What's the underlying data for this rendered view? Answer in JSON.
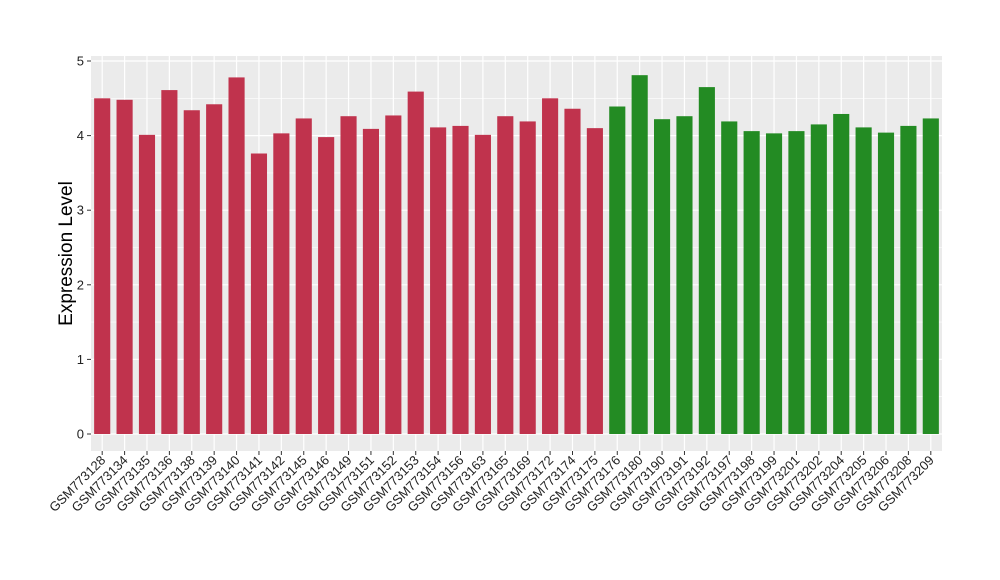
{
  "chart_data": {
    "type": "bar",
    "title": "",
    "xlabel": "",
    "ylabel": "Expression Level",
    "ylim": [
      0,
      5
    ],
    "yticks": [
      0,
      1,
      2,
      3,
      4,
      5
    ],
    "grid": true,
    "legend": "none",
    "colors": {
      "group_a": "#c0334d",
      "group_b": "#238b23",
      "panel": "#ebebeb",
      "grid": "#ffffff"
    },
    "categories": [
      "GSM773128",
      "GSM773134",
      "GSM773135",
      "GSM773136",
      "GSM773138",
      "GSM773139",
      "GSM773140",
      "GSM773141",
      "GSM773142",
      "GSM773145",
      "GSM773146",
      "GSM773149",
      "GSM773151",
      "GSM773152",
      "GSM773153",
      "GSM773154",
      "GSM773156",
      "GSM773163",
      "GSM773165",
      "GSM773169",
      "GSM773172",
      "GSM773174",
      "GSM773175",
      "GSM773176",
      "GSM773180",
      "GSM773190",
      "GSM773191",
      "GSM773192",
      "GSM773197",
      "GSM773198",
      "GSM773199",
      "GSM773201",
      "GSM773202",
      "GSM773204",
      "GSM773205",
      "GSM773206",
      "GSM773208",
      "GSM773209"
    ],
    "values": [
      4.5,
      4.48,
      4.01,
      4.61,
      4.34,
      4.42,
      4.78,
      3.76,
      4.03,
      4.23,
      3.98,
      4.26,
      4.09,
      4.27,
      4.59,
      4.11,
      4.13,
      4.01,
      4.26,
      4.19,
      4.5,
      4.36,
      4.1,
      4.39,
      4.81,
      4.22,
      4.26,
      4.65,
      4.19,
      4.06,
      4.03,
      4.06,
      4.15,
      4.29,
      4.11,
      4.04,
      4.13,
      4.23
    ],
    "groups": [
      "a",
      "a",
      "a",
      "a",
      "a",
      "a",
      "a",
      "a",
      "a",
      "a",
      "a",
      "a",
      "a",
      "a",
      "a",
      "a",
      "a",
      "a",
      "a",
      "a",
      "a",
      "a",
      "a",
      "b",
      "b",
      "b",
      "b",
      "b",
      "b",
      "b",
      "b",
      "b",
      "b",
      "b",
      "b",
      "b",
      "b",
      "b"
    ]
  }
}
